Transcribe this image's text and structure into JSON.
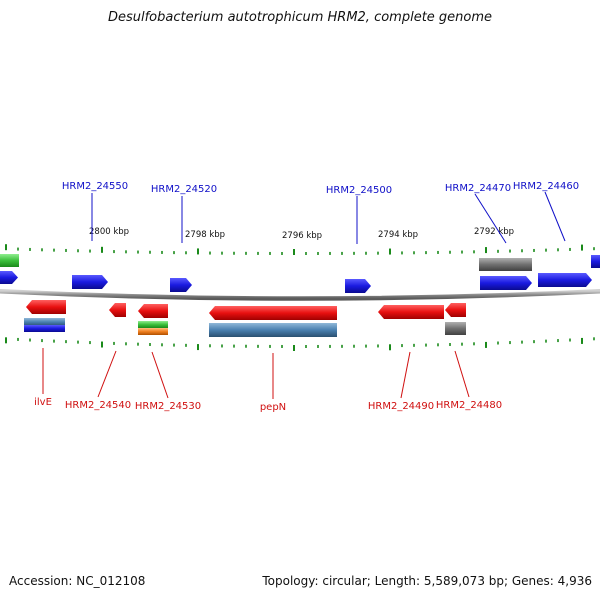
{
  "title": "Desulfobacterium autotrophicum HRM2, complete genome",
  "footer": {
    "accession": "Accession: NC_012108",
    "summary": "Topology: circular; Length: 5,589,073 bp; Genes: 4,936"
  },
  "colors": {
    "forward_gene": "#1a1ae0",
    "reverse_gene": "#e01010",
    "tick": "#1a8a1a",
    "backbone": "#8a8a8a",
    "top_label": "#1010c8",
    "bottom_label": "#d01010",
    "rna": "#4a80b0",
    "pseudo": "#707070",
    "green_feature": "#3cc03c",
    "orange_feature": "#f08020"
  },
  "scale": {
    "ticks": [
      {
        "label": "2800 kbp"
      },
      {
        "label": "2798 kbp"
      },
      {
        "label": "2796 kbp"
      },
      {
        "label": "2794 kbp"
      },
      {
        "label": "2792 kbp"
      }
    ]
  },
  "top_labels": [
    {
      "text": "HRM2_24550"
    },
    {
      "text": "HRM2_24520"
    },
    {
      "text": "HRM2_24500"
    },
    {
      "text": "HRM2_24470"
    },
    {
      "text": "HRM2_24460"
    }
  ],
  "bottom_labels": [
    {
      "text": "ilvE"
    },
    {
      "text": "HRM2_24540"
    },
    {
      "text": "HRM2_24530"
    },
    {
      "text": "pepN"
    },
    {
      "text": "HRM2_24490"
    },
    {
      "text": "HRM2_24480"
    }
  ]
}
